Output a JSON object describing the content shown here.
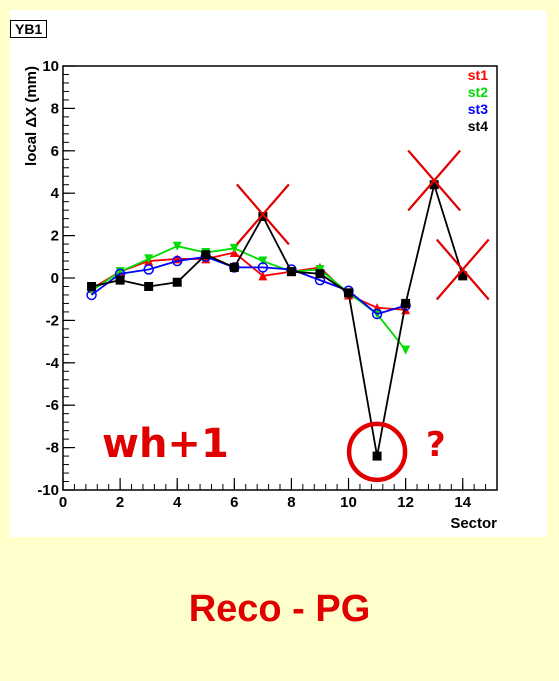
{
  "canvas_title": "YB1",
  "footer_text": "Reco - PG",
  "chart_data": {
    "type": "line",
    "xlabel": "Sector",
    "ylabel": "local ΔX (mm)",
    "xlim": [
      0,
      15.2
    ],
    "ylim": [
      -10,
      10
    ],
    "x_ticks": [
      0,
      2,
      4,
      6,
      8,
      10,
      12,
      14
    ],
    "y_ticks": [
      -10,
      -8,
      -6,
      -4,
      -2,
      0,
      2,
      4,
      6,
      8,
      10
    ],
    "grid": false,
    "legend_position": "top-right",
    "series": [
      {
        "name": "st1",
        "color": "#ff0000",
        "marker": "triangle-up",
        "points": [
          [
            1,
            -0.5
          ],
          [
            2,
            0.3
          ],
          [
            3,
            0.8
          ],
          [
            4,
            0.9
          ],
          [
            5,
            0.9
          ],
          [
            6,
            1.2
          ],
          [
            7,
            0.1
          ],
          [
            8,
            0.3
          ],
          [
            9,
            0.5
          ],
          [
            10,
            -0.8
          ],
          [
            11,
            -1.4
          ],
          [
            12,
            -1.5
          ]
        ]
      },
      {
        "name": "st2",
        "color": "#00dd00",
        "marker": "triangle-down",
        "points": [
          [
            1,
            -0.6
          ],
          [
            2,
            0.3
          ],
          [
            3,
            0.9
          ],
          [
            4,
            1.5
          ],
          [
            5,
            1.2
          ],
          [
            6,
            1.4
          ],
          [
            7,
            0.8
          ],
          [
            8,
            0.3
          ],
          [
            9,
            0.4
          ],
          [
            10,
            -0.7
          ],
          [
            11,
            -1.7
          ],
          [
            12,
            -3.4
          ]
        ]
      },
      {
        "name": "st3",
        "color": "#0000ff",
        "marker": "circle-open",
        "points": [
          [
            1,
            -0.8
          ],
          [
            2,
            0.2
          ],
          [
            3,
            0.4
          ],
          [
            4,
            0.8
          ],
          [
            5,
            1.0
          ],
          [
            6,
            0.5
          ],
          [
            7,
            0.5
          ],
          [
            8,
            0.4
          ],
          [
            9,
            -0.1
          ],
          [
            10,
            -0.6
          ],
          [
            11,
            -1.7
          ],
          [
            12,
            -1.3
          ]
        ]
      },
      {
        "name": "st4",
        "color": "#000000",
        "marker": "square",
        "points": [
          [
            1,
            -0.4
          ],
          [
            2,
            -0.1
          ],
          [
            3,
            -0.4
          ],
          [
            4,
            -0.2
          ],
          [
            5,
            1.1
          ],
          [
            6,
            0.5
          ],
          [
            7,
            2.9
          ],
          [
            8,
            0.3
          ],
          [
            9,
            0.2
          ],
          [
            10,
            -0.7
          ],
          [
            11,
            -8.4
          ],
          [
            12,
            -1.2
          ],
          [
            13,
            4.4
          ],
          [
            14,
            0.1
          ]
        ]
      }
    ],
    "annotations": {
      "text_label": "wh+1",
      "question_mark": "?",
      "cross_marks_at": [
        [
          7,
          3.0
        ],
        [
          13,
          4.6
        ],
        [
          14,
          0.4
        ]
      ],
      "circle_at": [
        11,
        -8.2
      ],
      "annotation_color": "#e00000"
    }
  }
}
